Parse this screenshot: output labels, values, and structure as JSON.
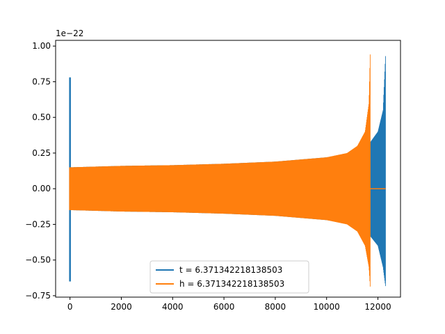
{
  "chart_data": {
    "type": "line",
    "title": "",
    "xlabel": "",
    "ylabel": "",
    "y_offset_label": "1e−22",
    "xlim": [
      -560,
      12880
    ],
    "ylim": [
      -0.76,
      1.04
    ],
    "grid": false,
    "legend_placement": "lower center",
    "x_ticks": [
      0,
      2000,
      4000,
      6000,
      8000,
      10000,
      12000
    ],
    "x_tick_labels": [
      "0",
      "2000",
      "4000",
      "6000",
      "8000",
      "10000",
      "12000"
    ],
    "y_ticks": [
      -0.75,
      -0.5,
      -0.25,
      0.0,
      0.25,
      0.5,
      0.75,
      1.0
    ],
    "y_tick_labels": [
      "−0.75",
      "−0.50",
      "−0.25",
      "0.00",
      "0.25",
      "0.50",
      "0.75",
      "1.00"
    ],
    "series": [
      {
        "name": "t = 6.371342218138503",
        "color": "#1f77b4",
        "start_spike": {
          "x": 0,
          "max": 0.78,
          "min": -0.65
        },
        "envelope_x": [
          20,
          2000,
          4000,
          6000,
          8000,
          10000,
          11000,
          11600,
          12000,
          12200,
          12300
        ],
        "envelope_upper": [
          0.15,
          0.16,
          0.165,
          0.175,
          0.19,
          0.22,
          0.25,
          0.3,
          0.4,
          0.55,
          0.95
        ],
        "envelope_lower": [
          -0.15,
          -0.16,
          -0.165,
          -0.175,
          -0.19,
          -0.22,
          -0.25,
          -0.31,
          -0.4,
          -0.55,
          -0.69
        ],
        "end_x": 12300
      },
      {
        "name": "h = 6.371342218138503",
        "color": "#ff7f0e",
        "start_spike": {
          "x": 0,
          "max": 0.15,
          "min": -0.15
        },
        "envelope_x": [
          20,
          2000,
          4000,
          6000,
          8000,
          10000,
          10800,
          11200,
          11500,
          11650,
          11700
        ],
        "envelope_upper": [
          0.15,
          0.16,
          0.165,
          0.175,
          0.19,
          0.22,
          0.25,
          0.3,
          0.4,
          0.6,
          0.95
        ],
        "envelope_lower": [
          -0.15,
          -0.16,
          -0.165,
          -0.175,
          -0.19,
          -0.22,
          -0.25,
          -0.3,
          -0.4,
          -0.55,
          -0.69
        ],
        "end_x": 11700,
        "flat_tail": {
          "x_start": 11700,
          "x_end": 12300,
          "y": 0.0
        }
      }
    ]
  }
}
